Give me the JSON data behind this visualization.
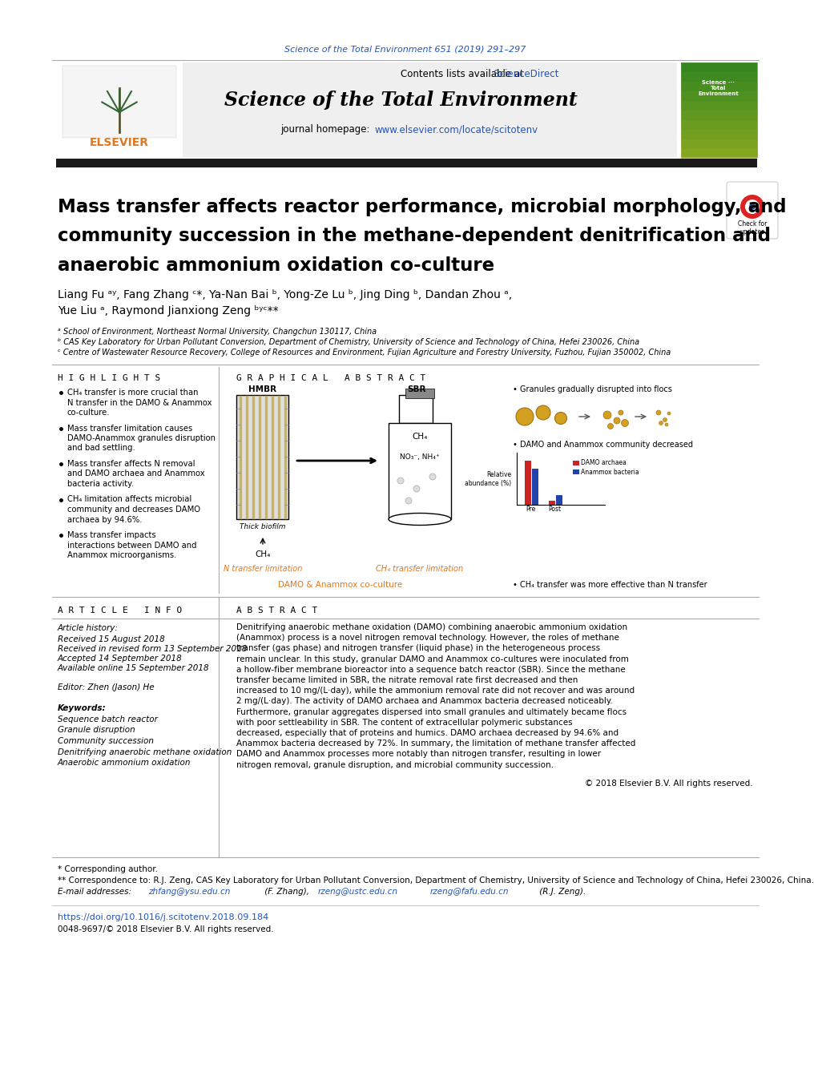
{
  "journal_ref": "Science of the Total Environment 651 (2019) 291–297",
  "journal_name": "Science of the Total Environment",
  "contents_text": "Contents lists available at ",
  "sciencedirect_text": "ScienceDirect",
  "homepage_text": "journal homepage: ",
  "homepage_url": "www.elsevier.com/locate/scitotenv",
  "elsevier_text": "ELSEVIER",
  "title_line1": "Mass transfer affects reactor performance, microbial morphology, and",
  "title_line2": "community succession in the methane-dependent denitrification and",
  "title_line3": "anaerobic ammonium oxidation co-culture",
  "author_line1": "Liang Fu ᵃʸ, Fang Zhang ᶜ*, Ya-Nan Bai ᵇ, Yong-Ze Lu ᵇ, Jing Ding ᵇ, Dandan Zhou ᵃ,",
  "author_line2": "Yue Liu ᵃ, Raymond Jianxiong Zeng ᵇʸᶜ**",
  "affil_a": "ᵃ School of Environment, Northeast Normal University, Changchun 130117, China",
  "affil_b": "ᵇ CAS Key Laboratory for Urban Pollutant Conversion, Department of Chemistry, University of Science and Technology of China, Hefei 230026, China",
  "affil_c": "ᶜ Centre of Wastewater Resource Recovery, College of Resources and Environment, Fujian Agriculture and Forestry University, Fuzhou, Fujian 350002, China",
  "highlights_title": "H I G H L I G H T S",
  "graphical_abstract_title": "G R A P H I C A L   A B S T R A C T",
  "highlight1": "CH₄ transfer is more crucial than N transfer in the DAMO & Anammox co-culture.",
  "highlight2": "Mass transfer limitation causes DAMO-Anammox granules disruption and bad settling.",
  "highlight3": "Mass transfer affects N removal and DAMO archaea and Anammox bacteria activity.",
  "highlight4": "CH₄ limitation affects microbial community and decreases DAMO archaea by 94.6%.",
  "highlight5": "Mass transfer impacts interactions between DAMO and Anammox microorganisms.",
  "article_info_title": "A R T I C L E   I N F O",
  "abstract_title": "A B S T R A C T",
  "article_history": "Article history:",
  "received": "Received 15 August 2018",
  "revised": "Received in revised form 13 September 2018",
  "accepted": "Accepted 14 September 2018",
  "available": "Available online 15 September 2018",
  "editor": "Editor: Zhen (Jason) He",
  "keywords_title": "Keywords:",
  "keyword1": "Sequence batch reactor",
  "keyword2": "Granule disruption",
  "keyword3": "Community succession",
  "keyword4": "Denitrifying anaerobic methane oxidation",
  "keyword5": "Anaerobic ammonium oxidation",
  "abstract_text": "Denitrifying anaerobic methane oxidation (DAMO) combining anaerobic ammonium oxidation (Anammox) process is a novel nitrogen removal technology. However, the roles of methane transfer (gas phase) and nitrogen transfer (liquid phase) in the heterogeneous process remain unclear. In this study, granular DAMO and Anammox co-cultures were inoculated from a hollow-fiber membrane bioreactor into a sequence batch reactor (SBR). Since the methane transfer became limited in SBR, the nitrate removal rate first decreased and then increased to 10 mg/(L·day), while the ammonium removal rate did not recover and was around 2 mg/(L·day). The activity of DAMO archaea and Anammox bacteria decreased noticeably. Furthermore, granular aggregates dispersed into small granules and ultimately became flocs with poor settleability in SBR. The content of extracellular polymeric substances decreased, especially that of proteins and humics. DAMO archaea decreased by 94.6% and Anammox bacteria decreased by 72%. In summary, the limitation of methane transfer affected DAMO and Anammox processes more notably than nitrogen transfer, resulting in lower nitrogen removal, granule disruption, and microbial community succession.",
  "copyright_text": "© 2018 Elsevier B.V. All rights reserved.",
  "footnote1": "* Corresponding author.",
  "footnote2": "** Correspondence to: R.J. Zeng, CAS Key Laboratory for Urban Pollutant Conversion, Department of Chemistry, University of Science and Technology of China, Hefei 230026, China.",
  "footnote3": "E-mail addresses: zhfang@ysu.edu.cn (F. Zhang), rzeng@ustc.edu.cn rzeng@fafu.edu.cn (R.J. Zeng).",
  "doi": "https://doi.org/10.1016/j.scitotenv.2018.09.184",
  "issn": "0048-9697/© 2018 Elsevier B.V. All rights reserved.",
  "header_bg": "#efefef",
  "black_bar_color": "#1a1a1a",
  "blue_color": "#2255bb",
  "orange_color": "#e07820",
  "text_color": "#000000",
  "gray_color": "#888888",
  "light_gray": "#cccccc"
}
